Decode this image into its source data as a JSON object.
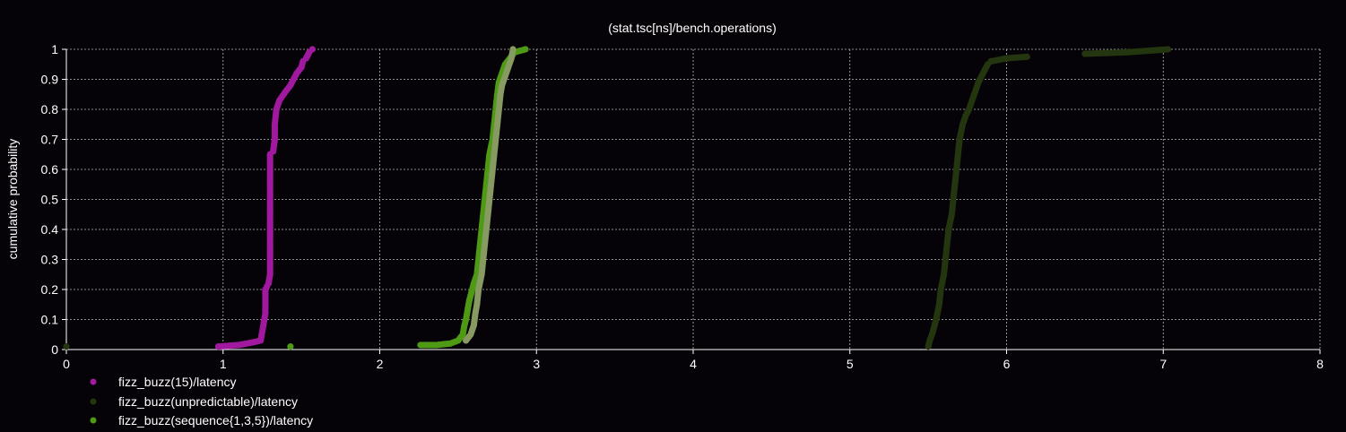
{
  "chart_data": {
    "type": "scatter",
    "title": "(stat.tsc[ns]/bench.operations)",
    "xlabel": "",
    "ylabel": "cumulative probability",
    "xlim": [
      0,
      8
    ],
    "ylim": [
      0,
      1
    ],
    "x_ticks": [
      "0",
      "1",
      "2",
      "3",
      "4",
      "5",
      "6",
      "7",
      "8"
    ],
    "y_ticks": [
      "0",
      "0.1",
      "0.2",
      "0.3",
      "0.4",
      "0.5",
      "0.6",
      "0.7",
      "0.8",
      "0.9",
      "1"
    ],
    "grid": true,
    "legend_position": "bottom-left",
    "series": [
      {
        "name": "fizz_buzz(15)/latency",
        "color": "#a0199e",
        "points": [
          [
            0.97,
            0.01
          ],
          [
            1.1,
            0.015
          ],
          [
            1.2,
            0.025
          ],
          [
            1.24,
            0.03
          ],
          [
            1.25,
            0.06
          ],
          [
            1.26,
            0.09
          ],
          [
            1.27,
            0.12
          ],
          [
            1.27,
            0.15
          ],
          [
            1.27,
            0.2
          ],
          [
            1.28,
            0.21
          ],
          [
            1.29,
            0.22
          ],
          [
            1.3,
            0.25
          ],
          [
            1.3,
            0.3
          ],
          [
            1.3,
            0.35
          ],
          [
            1.3,
            0.4
          ],
          [
            1.3,
            0.45
          ],
          [
            1.3,
            0.5
          ],
          [
            1.3,
            0.55
          ],
          [
            1.3,
            0.6
          ],
          [
            1.3,
            0.65
          ],
          [
            1.32,
            0.66
          ],
          [
            1.33,
            0.7
          ],
          [
            1.33,
            0.75
          ],
          [
            1.34,
            0.8
          ],
          [
            1.36,
            0.83
          ],
          [
            1.4,
            0.86
          ],
          [
            1.43,
            0.88
          ],
          [
            1.45,
            0.9
          ],
          [
            1.47,
            0.92
          ],
          [
            1.5,
            0.94
          ],
          [
            1.51,
            0.96
          ],
          [
            1.53,
            0.97
          ],
          [
            1.55,
            0.99
          ],
          [
            1.57,
            1.0
          ]
        ]
      },
      {
        "name": "fizz_buzz(unpredictable)/latency",
        "color": "#24360f",
        "points": [
          [
            0.0,
            0.01
          ],
          [
            5.5,
            0.01
          ],
          [
            5.51,
            0.03
          ],
          [
            5.53,
            0.06
          ],
          [
            5.55,
            0.1
          ],
          [
            5.57,
            0.15
          ],
          [
            5.58,
            0.2
          ],
          [
            5.6,
            0.25
          ],
          [
            5.61,
            0.3
          ],
          [
            5.62,
            0.35
          ],
          [
            5.63,
            0.4
          ],
          [
            5.65,
            0.45
          ],
          [
            5.66,
            0.5
          ],
          [
            5.67,
            0.55
          ],
          [
            5.68,
            0.6
          ],
          [
            5.69,
            0.65
          ],
          [
            5.7,
            0.7
          ],
          [
            5.72,
            0.75
          ],
          [
            5.74,
            0.78
          ],
          [
            5.76,
            0.8
          ],
          [
            5.78,
            0.83
          ],
          [
            5.8,
            0.86
          ],
          [
            5.82,
            0.89
          ],
          [
            5.84,
            0.91
          ],
          [
            5.86,
            0.93
          ],
          [
            5.88,
            0.95
          ],
          [
            5.9,
            0.96
          ],
          [
            6.0,
            0.97
          ],
          [
            6.13,
            0.975
          ],
          [
            6.5,
            0.985
          ],
          [
            6.77,
            0.99
          ],
          [
            7.03,
            1.0
          ]
        ]
      },
      {
        "name": "fizz_buzz(sequence{1,3,5})/latency",
        "color": "#4e9a15",
        "points": [
          [
            1.43,
            0.01
          ],
          [
            2.26,
            0.015
          ],
          [
            2.36,
            0.015
          ],
          [
            2.45,
            0.02
          ],
          [
            2.5,
            0.03
          ],
          [
            2.53,
            0.05
          ],
          [
            2.54,
            0.08
          ],
          [
            2.55,
            0.1
          ],
          [
            2.56,
            0.13
          ],
          [
            2.57,
            0.16
          ],
          [
            2.58,
            0.18
          ],
          [
            2.6,
            0.22
          ],
          [
            2.62,
            0.25
          ],
          [
            2.63,
            0.3
          ],
          [
            2.64,
            0.35
          ],
          [
            2.65,
            0.4
          ],
          [
            2.66,
            0.45
          ],
          [
            2.67,
            0.5
          ],
          [
            2.68,
            0.55
          ],
          [
            2.69,
            0.6
          ],
          [
            2.7,
            0.65
          ],
          [
            2.72,
            0.7
          ],
          [
            2.73,
            0.75
          ],
          [
            2.74,
            0.8
          ],
          [
            2.75,
            0.85
          ],
          [
            2.76,
            0.89
          ],
          [
            2.78,
            0.92
          ],
          [
            2.8,
            0.95
          ],
          [
            2.83,
            0.97
          ],
          [
            2.86,
            0.99
          ],
          [
            2.93,
            1.0
          ]
        ]
      },
      {
        "name": "",
        "color": "#869a62",
        "points": [
          [
            2.55,
            0.03
          ],
          [
            2.58,
            0.05
          ],
          [
            2.6,
            0.08
          ],
          [
            2.61,
            0.12
          ],
          [
            2.62,
            0.15
          ],
          [
            2.63,
            0.2
          ],
          [
            2.65,
            0.25
          ],
          [
            2.66,
            0.3
          ],
          [
            2.67,
            0.35
          ],
          [
            2.68,
            0.4
          ],
          [
            2.69,
            0.45
          ],
          [
            2.7,
            0.5
          ],
          [
            2.71,
            0.55
          ],
          [
            2.72,
            0.6
          ],
          [
            2.73,
            0.65
          ],
          [
            2.74,
            0.7
          ],
          [
            2.75,
            0.75
          ],
          [
            2.76,
            0.8
          ],
          [
            2.77,
            0.85
          ],
          [
            2.78,
            0.88
          ],
          [
            2.8,
            0.91
          ],
          [
            2.82,
            0.94
          ],
          [
            2.84,
            0.97
          ],
          [
            2.85,
            1.0
          ]
        ]
      }
    ]
  }
}
